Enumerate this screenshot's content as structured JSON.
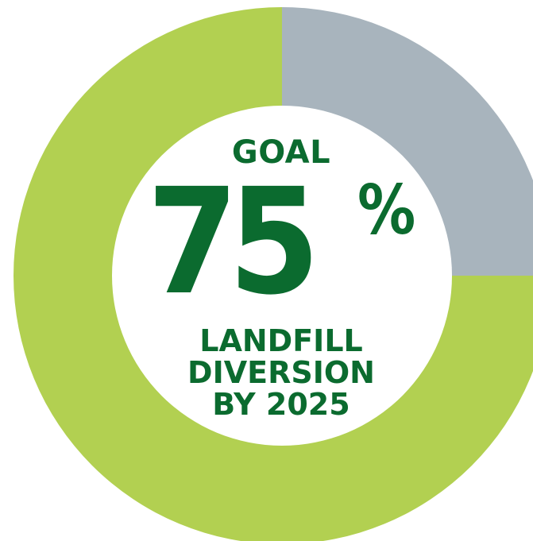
{
  "chart_data": {
    "type": "pie",
    "style": "donut",
    "slices": [
      {
        "value": 75,
        "color": "#b2d051"
      },
      {
        "value": 25,
        "color": "#a8b4bd"
      }
    ],
    "center_text": {
      "goal": "GOAL",
      "value": "75",
      "unit": "%",
      "caption_lines": [
        "LANDFILL",
        "DIVERSION",
        "BY 2025"
      ]
    }
  },
  "colors": {
    "progress": "#b2d051",
    "remaining": "#a8b4bd",
    "text": "#0b6b2f",
    "hole": "#ffffff"
  }
}
